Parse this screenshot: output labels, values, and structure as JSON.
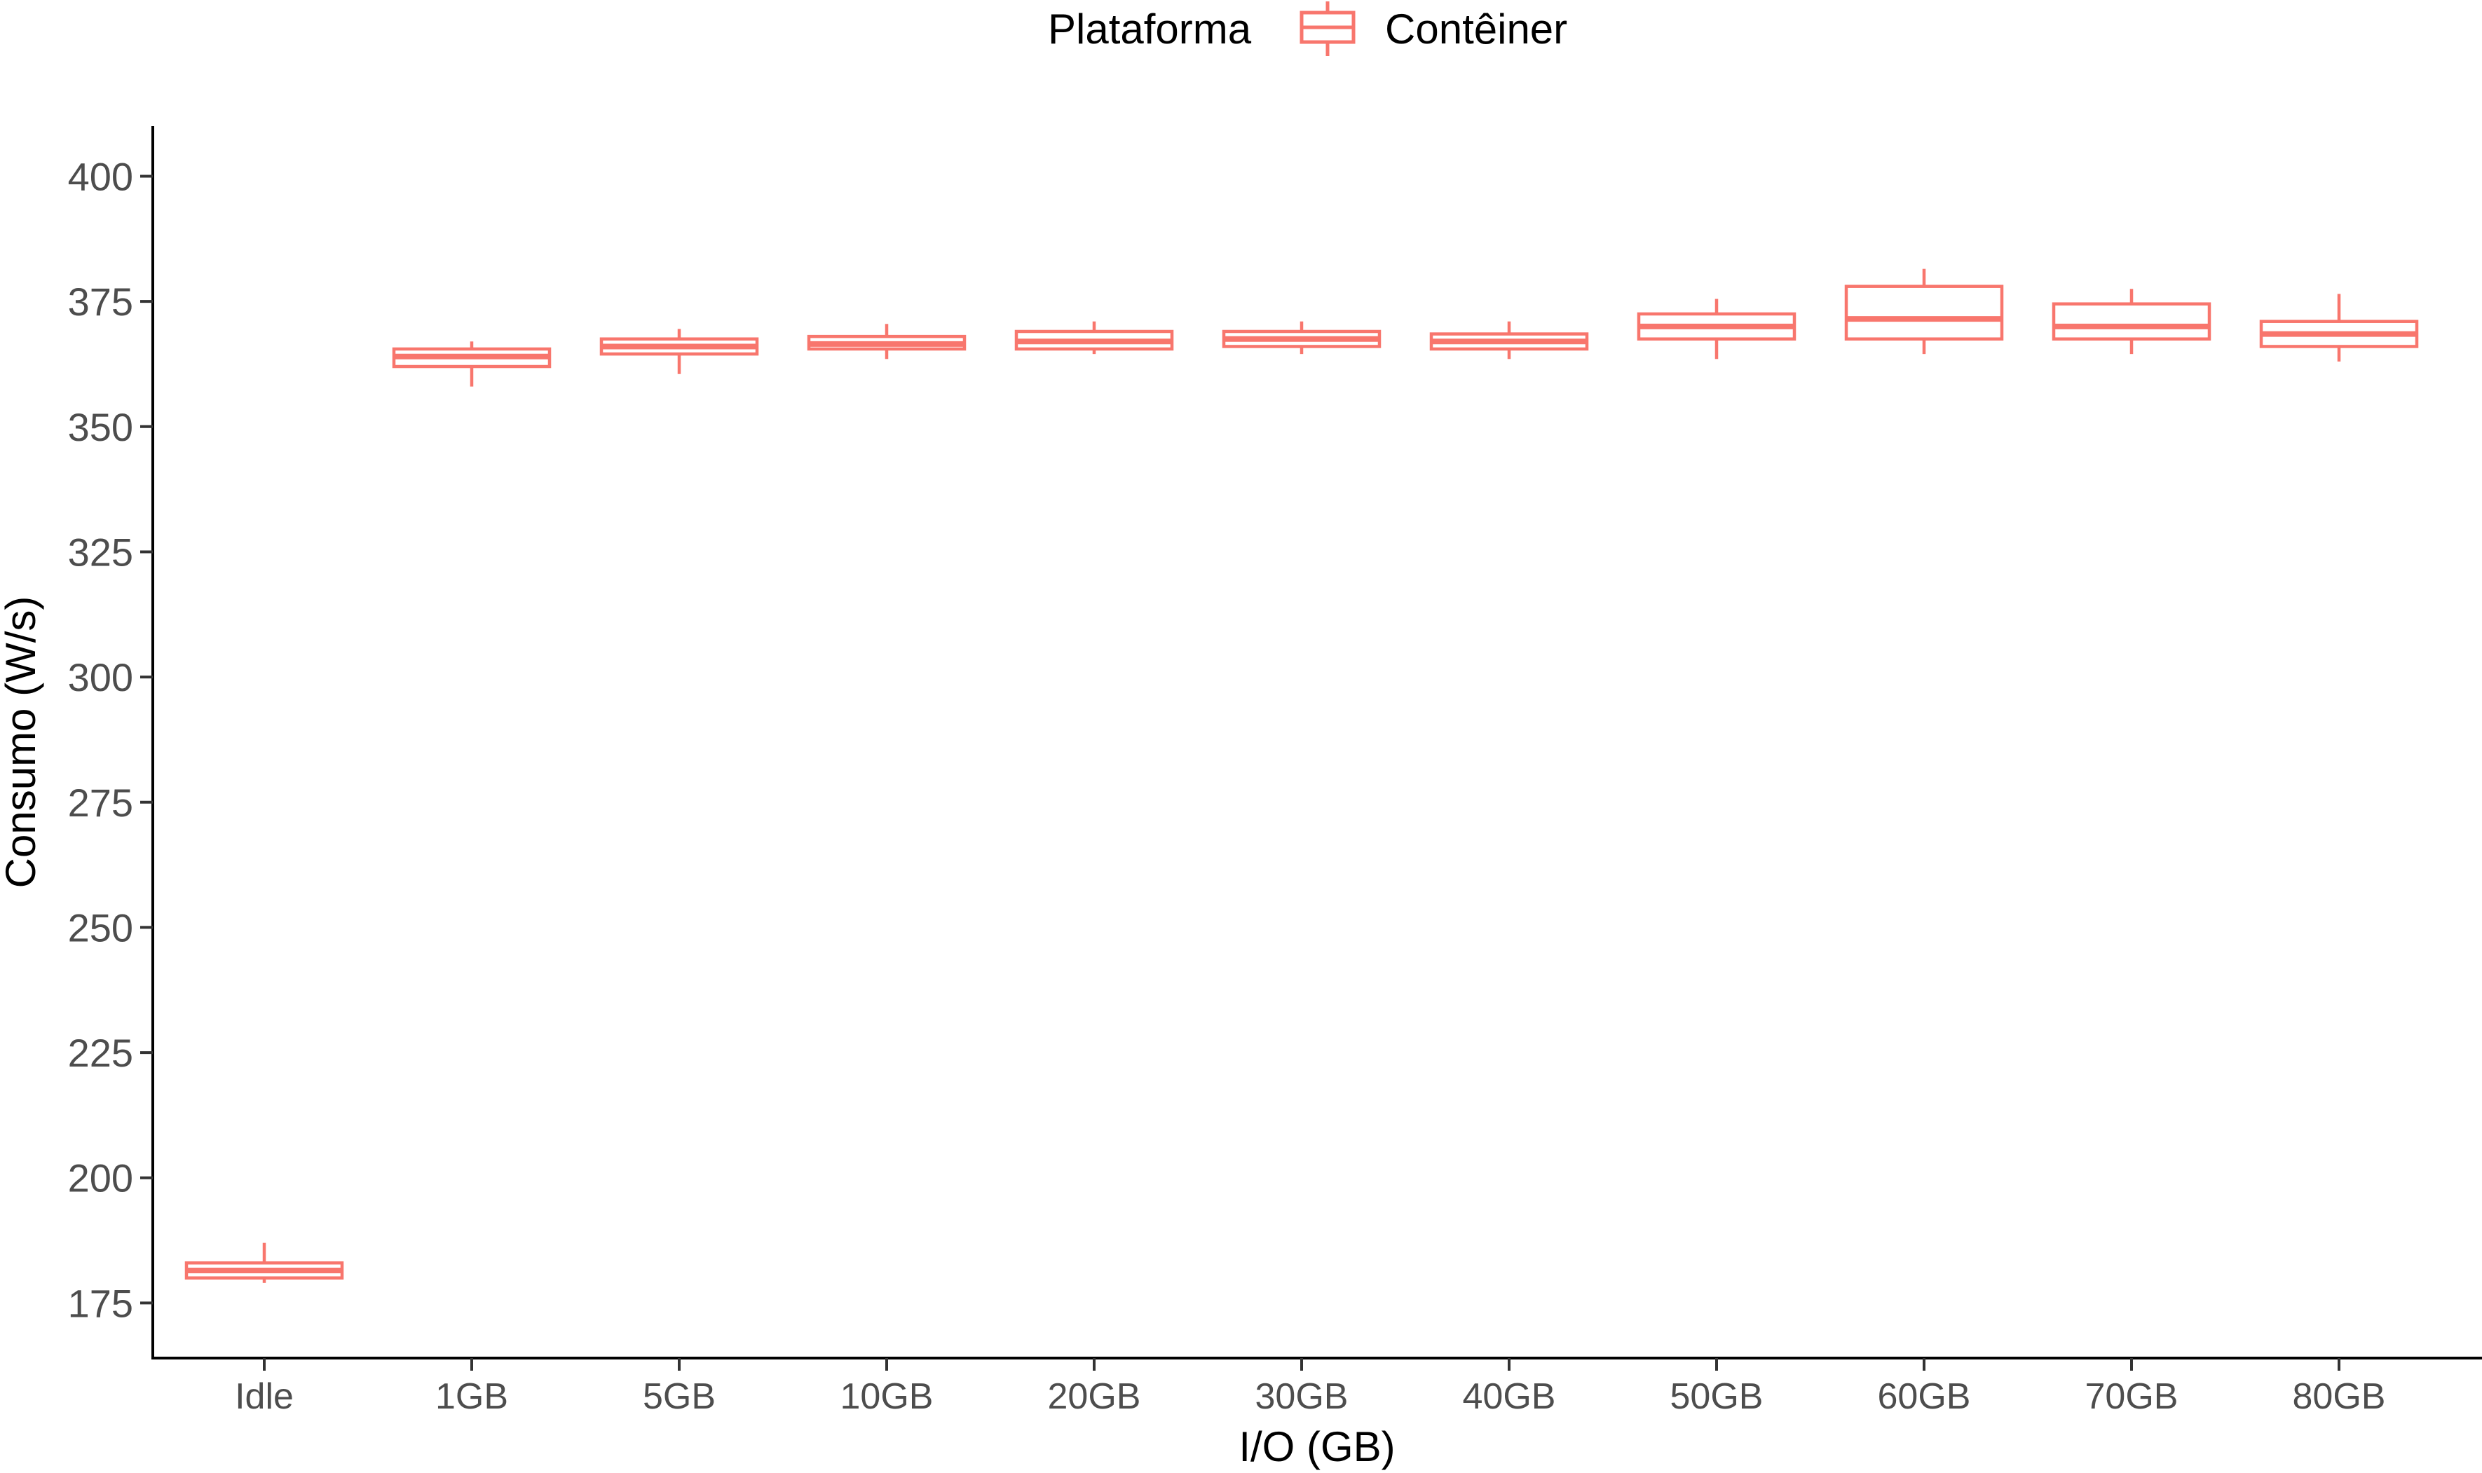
{
  "chart_data": {
    "type": "boxplot",
    "xlabel": "I/O (GB)",
    "ylabel": "Consumo (W/s)",
    "ylim": [
      164,
      410
    ],
    "yticks": [
      175,
      200,
      225,
      250,
      275,
      300,
      325,
      350,
      375,
      400
    ],
    "grid": false,
    "legend": {
      "title": "Plataforma",
      "position": "top",
      "entries": [
        "Contêiner"
      ]
    },
    "color": "#F8766D",
    "categories": [
      "Idle",
      "1GB",
      "5GB",
      "10GB",
      "20GB",
      "30GB",
      "40GB",
      "50GB",
      "60GB",
      "70GB",
      "80GB"
    ],
    "series": [
      {
        "name": "Contêiner",
        "boxes": [
          {
            "min": 179.0,
            "q1": 180.0,
            "median": 181.5,
            "q3": 183.0,
            "max": 187.0
          },
          {
            "min": 358.0,
            "q1": 362.0,
            "median": 364.0,
            "q3": 365.5,
            "max": 367.0
          },
          {
            "min": 360.5,
            "q1": 364.5,
            "median": 366.0,
            "q3": 367.5,
            "max": 369.5
          },
          {
            "min": 363.5,
            "q1": 365.5,
            "median": 366.5,
            "q3": 368.0,
            "max": 370.5
          },
          {
            "min": 364.5,
            "q1": 365.5,
            "median": 367.0,
            "q3": 369.0,
            "max": 371.0
          },
          {
            "min": 364.5,
            "q1": 366.0,
            "median": 367.5,
            "q3": 369.0,
            "max": 371.0
          },
          {
            "min": 363.5,
            "q1": 365.5,
            "median": 367.0,
            "q3": 368.5,
            "max": 371.0
          },
          {
            "min": 363.5,
            "q1": 367.5,
            "median": 370.0,
            "q3": 372.5,
            "max": 375.5
          },
          {
            "min": 364.5,
            "q1": 367.5,
            "median": 371.5,
            "q3": 378.0,
            "max": 381.5
          },
          {
            "min": 364.5,
            "q1": 367.5,
            "median": 370.0,
            "q3": 374.5,
            "max": 377.5
          },
          {
            "min": 363.0,
            "q1": 366.0,
            "median": 368.5,
            "q3": 371.0,
            "max": 376.5
          }
        ]
      }
    ]
  }
}
